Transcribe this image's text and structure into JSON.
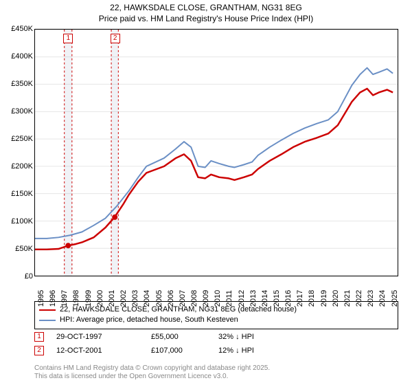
{
  "title": {
    "line1": "22, HAWKSDALE CLOSE, GRANTHAM, NG31 8EG",
    "line2": "Price paid vs. HM Land Registry's House Price Index (HPI)"
  },
  "chart": {
    "type": "line",
    "background_color": "#ffffff",
    "grid_color": "#e6e6e6",
    "border_color": "#000000",
    "x_range": [
      1995,
      2025.9
    ],
    "y_range": [
      0,
      450000
    ],
    "y_ticks": [
      0,
      50000,
      100000,
      150000,
      200000,
      250000,
      300000,
      350000,
      400000,
      450000
    ],
    "y_tick_labels": [
      "£0",
      "£50K",
      "£100K",
      "£150K",
      "£200K",
      "£250K",
      "£300K",
      "£350K",
      "£400K",
      "£450K"
    ],
    "x_ticks": [
      1995,
      1996,
      1997,
      1998,
      1999,
      2000,
      2001,
      2002,
      2003,
      2004,
      2005,
      2006,
      2007,
      2008,
      2009,
      2010,
      2011,
      2012,
      2013,
      2014,
      2015,
      2016,
      2017,
      2018,
      2019,
      2020,
      2021,
      2022,
      2023,
      2024,
      2025
    ],
    "tick_fontsize": 11,
    "series": [
      {
        "name": "red",
        "color": "#cc0000",
        "width": 2.5,
        "points": [
          [
            1995,
            48000
          ],
          [
            1996,
            48000
          ],
          [
            1997,
            49000
          ],
          [
            1997.83,
            55000
          ],
          [
            1998.5,
            58000
          ],
          [
            1999,
            61000
          ],
          [
            2000,
            70000
          ],
          [
            2001,
            88000
          ],
          [
            2001.78,
            107000
          ],
          [
            2002.5,
            130000
          ],
          [
            2003,
            148000
          ],
          [
            2003.8,
            172000
          ],
          [
            2004.5,
            188000
          ],
          [
            2005,
            192000
          ],
          [
            2006,
            200000
          ],
          [
            2007,
            215000
          ],
          [
            2007.7,
            222000
          ],
          [
            2008.3,
            210000
          ],
          [
            2008.9,
            180000
          ],
          [
            2009.5,
            178000
          ],
          [
            2010,
            185000
          ],
          [
            2010.7,
            180000
          ],
          [
            2011.5,
            178000
          ],
          [
            2012,
            175000
          ],
          [
            2012.8,
            180000
          ],
          [
            2013.5,
            185000
          ],
          [
            2014,
            195000
          ],
          [
            2015,
            210000
          ],
          [
            2016,
            222000
          ],
          [
            2017,
            235000
          ],
          [
            2018,
            245000
          ],
          [
            2019,
            252000
          ],
          [
            2020,
            260000
          ],
          [
            2020.8,
            275000
          ],
          [
            2021.5,
            300000
          ],
          [
            2022,
            318000
          ],
          [
            2022.7,
            335000
          ],
          [
            2023.3,
            342000
          ],
          [
            2023.8,
            330000
          ],
          [
            2024.3,
            335000
          ],
          [
            2025,
            340000
          ],
          [
            2025.5,
            335000
          ]
        ]
      },
      {
        "name": "blue",
        "color": "#6a8fc5",
        "width": 2,
        "points": [
          [
            1995,
            68000
          ],
          [
            1996,
            68000
          ],
          [
            1997,
            70000
          ],
          [
            1998,
            74000
          ],
          [
            1999,
            80000
          ],
          [
            2000,
            92000
          ],
          [
            2001,
            105000
          ],
          [
            2002,
            128000
          ],
          [
            2003,
            155000
          ],
          [
            2003.8,
            180000
          ],
          [
            2004.5,
            200000
          ],
          [
            2005,
            205000
          ],
          [
            2006,
            215000
          ],
          [
            2007,
            232000
          ],
          [
            2007.7,
            245000
          ],
          [
            2008.3,
            235000
          ],
          [
            2008.9,
            200000
          ],
          [
            2009.5,
            198000
          ],
          [
            2010,
            210000
          ],
          [
            2010.7,
            205000
          ],
          [
            2011.5,
            200000
          ],
          [
            2012,
            198000
          ],
          [
            2012.8,
            203000
          ],
          [
            2013.5,
            208000
          ],
          [
            2014,
            220000
          ],
          [
            2015,
            235000
          ],
          [
            2016,
            248000
          ],
          [
            2017,
            260000
          ],
          [
            2018,
            270000
          ],
          [
            2019,
            278000
          ],
          [
            2020,
            285000
          ],
          [
            2020.8,
            300000
          ],
          [
            2021.5,
            328000
          ],
          [
            2022,
            348000
          ],
          [
            2022.7,
            368000
          ],
          [
            2023.3,
            380000
          ],
          [
            2023.8,
            368000
          ],
          [
            2024.3,
            372000
          ],
          [
            2025,
            378000
          ],
          [
            2025.5,
            370000
          ]
        ]
      }
    ],
    "marker_bands": [
      {
        "num": "1",
        "x_start": 1997.5,
        "x_end": 1998.15,
        "dot_y": 55000
      },
      {
        "num": "2",
        "x_start": 2001.5,
        "x_end": 2002.1,
        "dot_y": 107000
      }
    ]
  },
  "legend": {
    "red_label": "22, HAWKSDALE CLOSE, GRANTHAM, NG31 8EG (detached house)",
    "blue_label": "HPI: Average price, detached house, South Kesteven"
  },
  "sales": [
    {
      "num": "1",
      "date": "29-OCT-1997",
      "price": "£55,000",
      "pct": "32% ↓ HPI"
    },
    {
      "num": "2",
      "date": "12-OCT-2001",
      "price": "£107,000",
      "pct": "12% ↓ HPI"
    }
  ],
  "footer": {
    "line1": "Contains HM Land Registry data © Crown copyright and database right 2025.",
    "line2": "This data is licensed under the Open Government Licence v3.0."
  }
}
